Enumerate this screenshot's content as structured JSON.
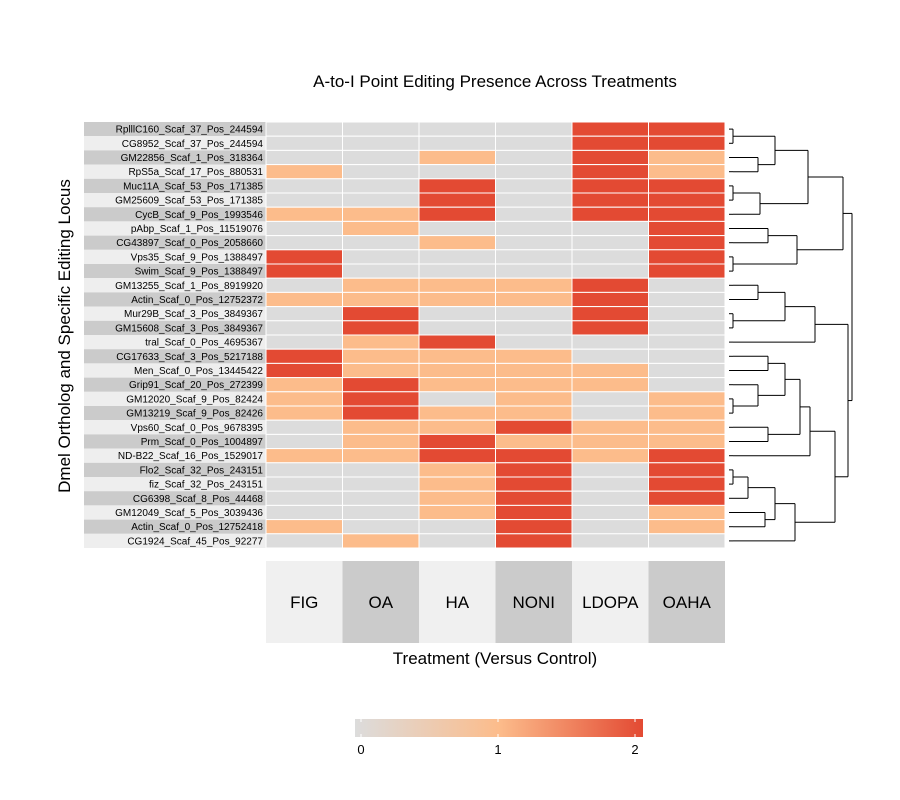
{
  "chart_data": {
    "type": "heatmap",
    "title": "A-to-I Point Editing Presence Across Treatments",
    "xlabel": "Treatment (Versus Control)",
    "ylabel": "Dmel Ortholog and Specific Editing Locus",
    "columns": [
      "FIG",
      "OA",
      "HA",
      "NONI",
      "LDOPA",
      "OAHA"
    ],
    "rows": [
      "RplllC160_Scaf_37_Pos_244594",
      "CG8952_Scaf_37_Pos_244594",
      "GM22856_Scaf_1_Pos_318364",
      "RpS5a_Scaf_17_Pos_880531",
      "Muc11A_Scaf_53_Pos_171385",
      "GM25609_Scaf_53_Pos_171385",
      "CycB_Scaf_9_Pos_1993546",
      "pAbp_Scaf_1_Pos_11519076",
      "CG43897_Scaf_0_Pos_2058660",
      "Vps35_Scaf_9_Pos_1388497",
      "Swim_Scaf_9_Pos_1388497",
      "GM13255_Scaf_1_Pos_8919920",
      "Actin_Scaf_0_Pos_12752372",
      "Mur29B_Scaf_3_Pos_3849367",
      "GM15608_Scaf_3_Pos_3849367",
      "tral_Scaf_0_Pos_4695367",
      "CG17633_Scaf_3_Pos_5217188",
      "Men_Scaf_0_Pos_13445422",
      "Grip91_Scaf_20_Pos_272399",
      "GM12020_Scaf_9_Pos_82424",
      "GM13219_Scaf_9_Pos_82426",
      "Vps60_Scaf_0_Pos_9678395",
      "Prm_Scaf_0_Pos_1004897",
      "ND-B22_Scaf_16_Pos_1529017",
      "Flo2_Scaf_32_Pos_243151",
      "fiz_Scaf_32_Pos_243151",
      "CG6398_Scaf_8_Pos_44468",
      "GM12049_Scaf_5_Pos_3039436",
      "Actin_Scaf_0_Pos_12752418",
      "CG1924_Scaf_45_Pos_92277"
    ],
    "values": [
      [
        0,
        0,
        0,
        0,
        2,
        2
      ],
      [
        0,
        0,
        0,
        0,
        2,
        2
      ],
      [
        0,
        0,
        1,
        0,
        2,
        1
      ],
      [
        1,
        0,
        0,
        0,
        2,
        1
      ],
      [
        0,
        0,
        2,
        0,
        2,
        2
      ],
      [
        0,
        0,
        2,
        0,
        2,
        2
      ],
      [
        1,
        1,
        2,
        0,
        2,
        2
      ],
      [
        0,
        1,
        0,
        0,
        0,
        2
      ],
      [
        0,
        0,
        1,
        0,
        0,
        2
      ],
      [
        2,
        0,
        0,
        0,
        0,
        2
      ],
      [
        2,
        0,
        0,
        0,
        0,
        2
      ],
      [
        0,
        1,
        1,
        1,
        2,
        0
      ],
      [
        1,
        1,
        1,
        1,
        2,
        0
      ],
      [
        0,
        2,
        0,
        0,
        2,
        0
      ],
      [
        0,
        2,
        0,
        0,
        2,
        0
      ],
      [
        0,
        1,
        2,
        0,
        0,
        0
      ],
      [
        2,
        1,
        1,
        1,
        0,
        0
      ],
      [
        2,
        1,
        1,
        1,
        1,
        0
      ],
      [
        1,
        2,
        1,
        1,
        1,
        0
      ],
      [
        1,
        2,
        0,
        1,
        0,
        1
      ],
      [
        1,
        2,
        1,
        1,
        0,
        1
      ],
      [
        0,
        1,
        1,
        2,
        1,
        1
      ],
      [
        0,
        1,
        2,
        1,
        1,
        1
      ],
      [
        1,
        1,
        2,
        2,
        1,
        2
      ],
      [
        0,
        0,
        1,
        2,
        0,
        2
      ],
      [
        0,
        0,
        1,
        2,
        0,
        2
      ],
      [
        0,
        0,
        1,
        2,
        0,
        2
      ],
      [
        0,
        0,
        1,
        2,
        0,
        1
      ],
      [
        1,
        0,
        0,
        2,
        0,
        1
      ],
      [
        0,
        1,
        0,
        2,
        0,
        0
      ]
    ],
    "scale": {
      "min": 0,
      "max": 2,
      "ticks": [
        0,
        1,
        2
      ]
    },
    "colors": {
      "0": "#dcdcdc",
      "1": "#fcbc8b",
      "2": "#e34a33"
    },
    "legend": "bottom",
    "dendrogram": "right"
  }
}
